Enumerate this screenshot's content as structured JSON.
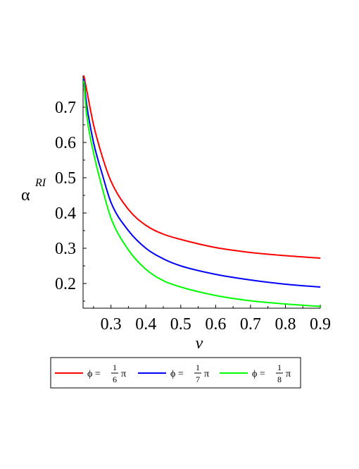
{
  "chart_data": {
    "type": "line",
    "xlabel": "v",
    "ylabel": "α",
    "ylabel_superscript": "RI",
    "xlim": [
      0.22,
      0.9
    ],
    "ylim": [
      0.13,
      0.79
    ],
    "x_ticks": [
      0.3,
      0.4,
      0.5,
      0.6,
      0.7,
      0.8,
      0.9
    ],
    "x_tick_labels": [
      "0.3",
      "0.4",
      "0.5",
      "0.6",
      "0.7",
      "0.8",
      "0.9"
    ],
    "y_ticks": [
      0.2,
      0.3,
      0.4,
      0.5,
      0.6,
      0.7
    ],
    "y_tick_labels": [
      "0.2",
      "0.3",
      "0.4",
      "0.5",
      "0.6",
      "0.7"
    ],
    "grid": false,
    "legend_position": "bottom",
    "x": [
      0.222,
      0.23,
      0.25,
      0.275,
      0.3,
      0.35,
      0.4,
      0.45,
      0.5,
      0.6,
      0.7,
      0.8,
      0.9
    ],
    "series": [
      {
        "name": "ϕ = 1/6 π",
        "legend_symbol": "ϕ =",
        "legend_num": "1",
        "legend_den": "6",
        "legend_pi": "π",
        "color": "#ff0000",
        "values": [
          0.79,
          0.75,
          0.65,
          0.56,
          0.49,
          0.41,
          0.365,
          0.34,
          0.325,
          0.302,
          0.288,
          0.279,
          0.272
        ]
      },
      {
        "name": "ϕ = 1/7 π",
        "legend_symbol": "ϕ =",
        "legend_num": "1",
        "legend_den": "7",
        "legend_pi": "π",
        "color": "#0000ff",
        "values": [
          0.78,
          0.71,
          0.6,
          0.51,
          0.43,
          0.35,
          0.3,
          0.27,
          0.25,
          0.226,
          0.21,
          0.198,
          0.19
        ]
      },
      {
        "name": "ϕ = 1/8 π",
        "legend_symbol": "ϕ =",
        "legend_num": "1",
        "legend_den": "8",
        "legend_pi": "π",
        "color": "#00ff00",
        "values": [
          0.775,
          0.68,
          0.57,
          0.47,
          0.385,
          0.295,
          0.24,
          0.208,
          0.19,
          0.166,
          0.151,
          0.142,
          0.135
        ]
      }
    ]
  }
}
